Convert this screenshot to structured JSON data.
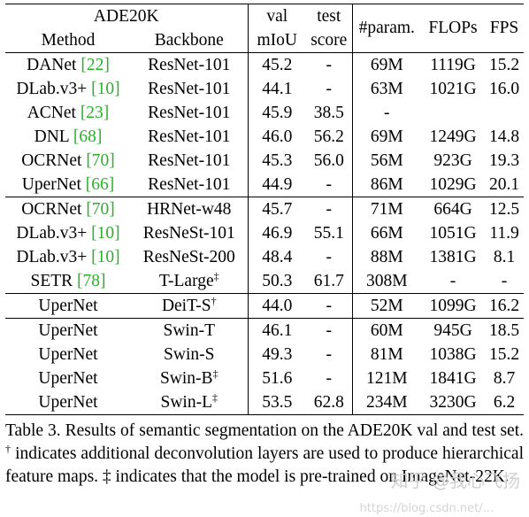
{
  "header": {
    "dataset": "ADE20K",
    "method": "Method",
    "backbone": "Backbone",
    "val_line1": "val",
    "val_line2": "mIoU",
    "test_line1": "test",
    "test_line2": "score",
    "params": "#param.",
    "flops": "FLOPs",
    "fps": "FPS"
  },
  "rows": [
    {
      "method": "DANet",
      "ref": "[22]",
      "backbone": "ResNet-101",
      "sup": "",
      "val": "45.2",
      "test": "-",
      "params": "69M",
      "flops": "1119G",
      "fps": "15.2"
    },
    {
      "method": "DLab.v3+",
      "ref": "[10]",
      "backbone": "ResNet-101",
      "sup": "",
      "val": "44.1",
      "test": "-",
      "params": "63M",
      "flops": "1021G",
      "fps": "16.0"
    },
    {
      "method": "ACNet",
      "ref": "[23]",
      "backbone": "ResNet-101",
      "sup": "",
      "val": "45.9",
      "test": "38.5",
      "params": "-",
      "flops": "",
      "fps": ""
    },
    {
      "method": "DNL",
      "ref": "[68]",
      "backbone": "ResNet-101",
      "sup": "",
      "val": "46.0",
      "test": "56.2",
      "params": "69M",
      "flops": "1249G",
      "fps": "14.8"
    },
    {
      "method": "OCRNet",
      "ref": "[70]",
      "backbone": "ResNet-101",
      "sup": "",
      "val": "45.3",
      "test": "56.0",
      "params": "56M",
      "flops": "923G",
      "fps": "19.3"
    },
    {
      "method": "UperNet",
      "ref": "[66]",
      "backbone": "ResNet-101",
      "sup": "",
      "val": "44.9",
      "test": "-",
      "params": "86M",
      "flops": "1029G",
      "fps": "20.1"
    },
    {
      "method": "OCRNet",
      "ref": "[70]",
      "backbone": "HRNet-w48",
      "sup": "",
      "val": "45.7",
      "test": "-",
      "params": "71M",
      "flops": "664G",
      "fps": "12.5"
    },
    {
      "method": "DLab.v3+",
      "ref": "[10]",
      "backbone": "ResNeSt-101",
      "sup": "",
      "val": "46.9",
      "test": "55.1",
      "params": "66M",
      "flops": "1051G",
      "fps": "11.9"
    },
    {
      "method": "DLab.v3+",
      "ref": "[10]",
      "backbone": "ResNeSt-200",
      "sup": "",
      "val": "48.4",
      "test": "-",
      "params": "88M",
      "flops": "1381G",
      "fps": "8.1"
    },
    {
      "method": "SETR",
      "ref": "[78]",
      "backbone": "T-Large",
      "sup": "‡",
      "val": "50.3",
      "test": "61.7",
      "params": "308M",
      "flops": "-",
      "fps": "-"
    },
    {
      "method": "UperNet",
      "ref": "",
      "backbone": "DeiT-S",
      "sup": "†",
      "val": "44.0",
      "test": "-",
      "params": "52M",
      "flops": "1099G",
      "fps": "16.2"
    },
    {
      "method": "UperNet",
      "ref": "",
      "backbone": "Swin-T",
      "sup": "",
      "val": "46.1",
      "test": "-",
      "params": "60M",
      "flops": "945G",
      "fps": "18.5"
    },
    {
      "method": "UperNet",
      "ref": "",
      "backbone": "Swin-S",
      "sup": "",
      "val": "49.3",
      "test": "-",
      "params": "81M",
      "flops": "1038G",
      "fps": "15.2"
    },
    {
      "method": "UperNet",
      "ref": "",
      "backbone": "Swin-B",
      "sup": "‡",
      "val": "51.6",
      "test": "-",
      "params": "121M",
      "flops": "1841G",
      "fps": "8.7"
    },
    {
      "method": "UperNet",
      "ref": "",
      "backbone": "Swin-L",
      "sup": "‡",
      "val": "53.5",
      "test": "62.8",
      "params": "234M",
      "flops": "3230G",
      "fps": "6.2"
    }
  ],
  "caption": {
    "part1": "Table 3. Results of semantic segmentation on the ADE20K val and test set. ",
    "dagger": "†",
    "part2": " indicates additional deconvolution layers are used to produce hierarchical feature maps. ",
    "ddagger": "‡",
    "part3": " indicates that the model is pre-trained on ImageNet-22K."
  },
  "watermark": {
    "main": "知乎 @我心飞扬",
    "url": "https://blog.csdn.net/..."
  },
  "colors": {
    "ref": "#2bb02b",
    "text": "#000000",
    "watermark": "#cfcfcf"
  }
}
